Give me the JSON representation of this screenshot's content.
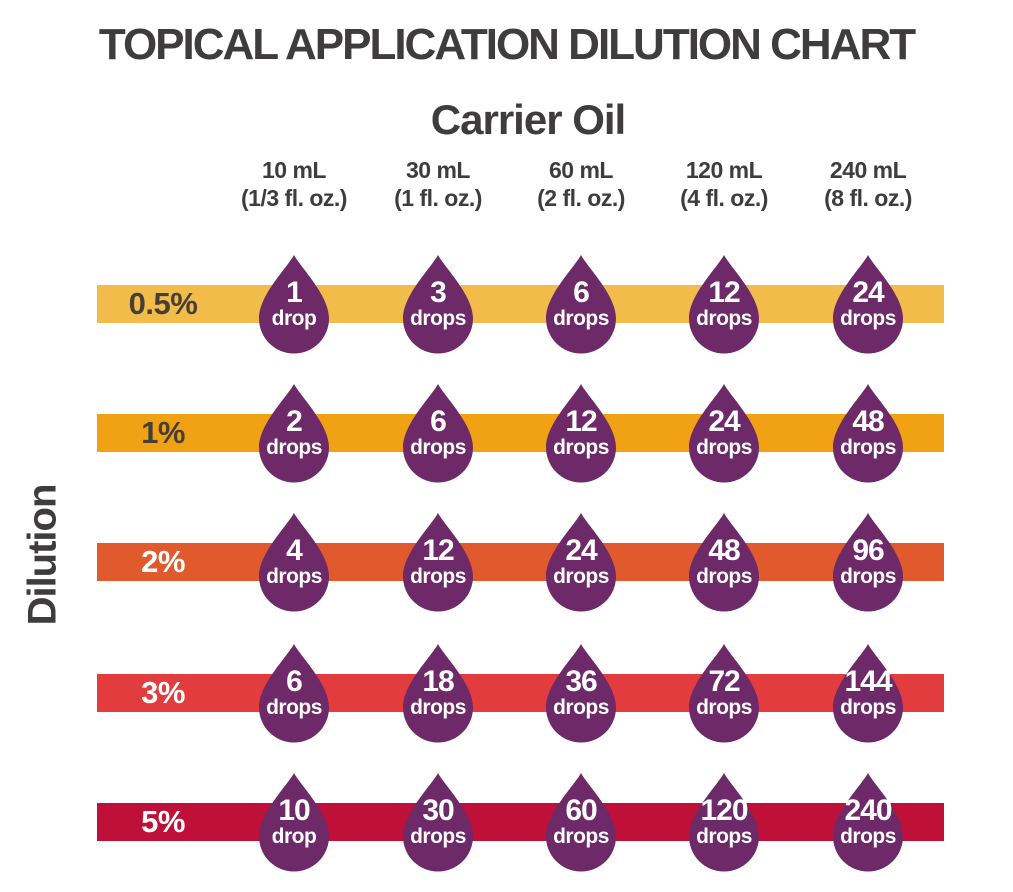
{
  "title": "TOPICAL APPLICATION DILUTION CHART",
  "column_group_label": "Carrier Oil",
  "row_group_label": "Dilution",
  "columns": [
    {
      "volume": "10 mL",
      "oz": "(1/3 fl. oz.)"
    },
    {
      "volume": "30 mL",
      "oz": "(1 fl. oz.)"
    },
    {
      "volume": "60 mL",
      "oz": "(2 fl. oz.)"
    },
    {
      "volume": "120 mL",
      "oz": "(4 fl. oz.)"
    },
    {
      "volume": "240 mL",
      "oz": "(8 fl. oz.)"
    }
  ],
  "rows": [
    {
      "label": "0.5%",
      "bar_color": "#f1bc49",
      "label_color": "#473f35",
      "cells": [
        {
          "value": "1",
          "unit": "drop"
        },
        {
          "value": "3",
          "unit": "drops"
        },
        {
          "value": "6",
          "unit": "drops"
        },
        {
          "value": "12",
          "unit": "drops"
        },
        {
          "value": "24",
          "unit": "drops"
        }
      ]
    },
    {
      "label": "1%",
      "bar_color": "#f0a214",
      "label_color": "#473f35",
      "cells": [
        {
          "value": "2",
          "unit": "drops"
        },
        {
          "value": "6",
          "unit": "drops"
        },
        {
          "value": "12",
          "unit": "drops"
        },
        {
          "value": "24",
          "unit": "drops"
        },
        {
          "value": "48",
          "unit": "drops"
        }
      ]
    },
    {
      "label": "2%",
      "bar_color": "#e15a2d",
      "label_color": "#ffffff",
      "cells": [
        {
          "value": "4",
          "unit": "drops"
        },
        {
          "value": "12",
          "unit": "drops"
        },
        {
          "value": "24",
          "unit": "drops"
        },
        {
          "value": "48",
          "unit": "drops"
        },
        {
          "value": "96",
          "unit": "drops"
        }
      ]
    },
    {
      "label": "3%",
      "bar_color": "#e23c3e",
      "label_color": "#ffffff",
      "cells": [
        {
          "value": "6",
          "unit": "drops"
        },
        {
          "value": "18",
          "unit": "drops"
        },
        {
          "value": "36",
          "unit": "drops"
        },
        {
          "value": "72",
          "unit": "drops"
        },
        {
          "value": "144",
          "unit": "drops"
        }
      ]
    },
    {
      "label": "5%",
      "bar_color": "#be1038",
      "label_color": "#ffffff",
      "cells": [
        {
          "value": "10",
          "unit": "drop"
        },
        {
          "value": "30",
          "unit": "drops"
        },
        {
          "value": "60",
          "unit": "drops"
        },
        {
          "value": "120",
          "unit": "drops"
        },
        {
          "value": "240",
          "unit": "drops"
        }
      ]
    }
  ],
  "colors": {
    "heading_text": "#3e3c3d",
    "droplet": "#6d2968",
    "background": "#ffffff"
  },
  "chart_data": {
    "type": "table",
    "title": "TOPICAL APPLICATION DILUTION CHART",
    "column_axis_label": "Carrier Oil",
    "row_axis_label": "Dilution",
    "columns": [
      "10 mL (1/3 fl. oz.)",
      "30 mL (1 fl. oz.)",
      "60 mL (2 fl. oz.)",
      "120 mL (4 fl. oz.)",
      "240 mL (8 fl. oz.)"
    ],
    "rows": [
      "0.5%",
      "1%",
      "2%",
      "3%",
      "5%"
    ],
    "values_drops": [
      [
        1,
        3,
        6,
        12,
        24
      ],
      [
        2,
        6,
        12,
        24,
        48
      ],
      [
        4,
        12,
        24,
        48,
        96
      ],
      [
        6,
        18,
        36,
        72,
        144
      ],
      [
        10,
        30,
        60,
        120,
        240
      ]
    ]
  }
}
